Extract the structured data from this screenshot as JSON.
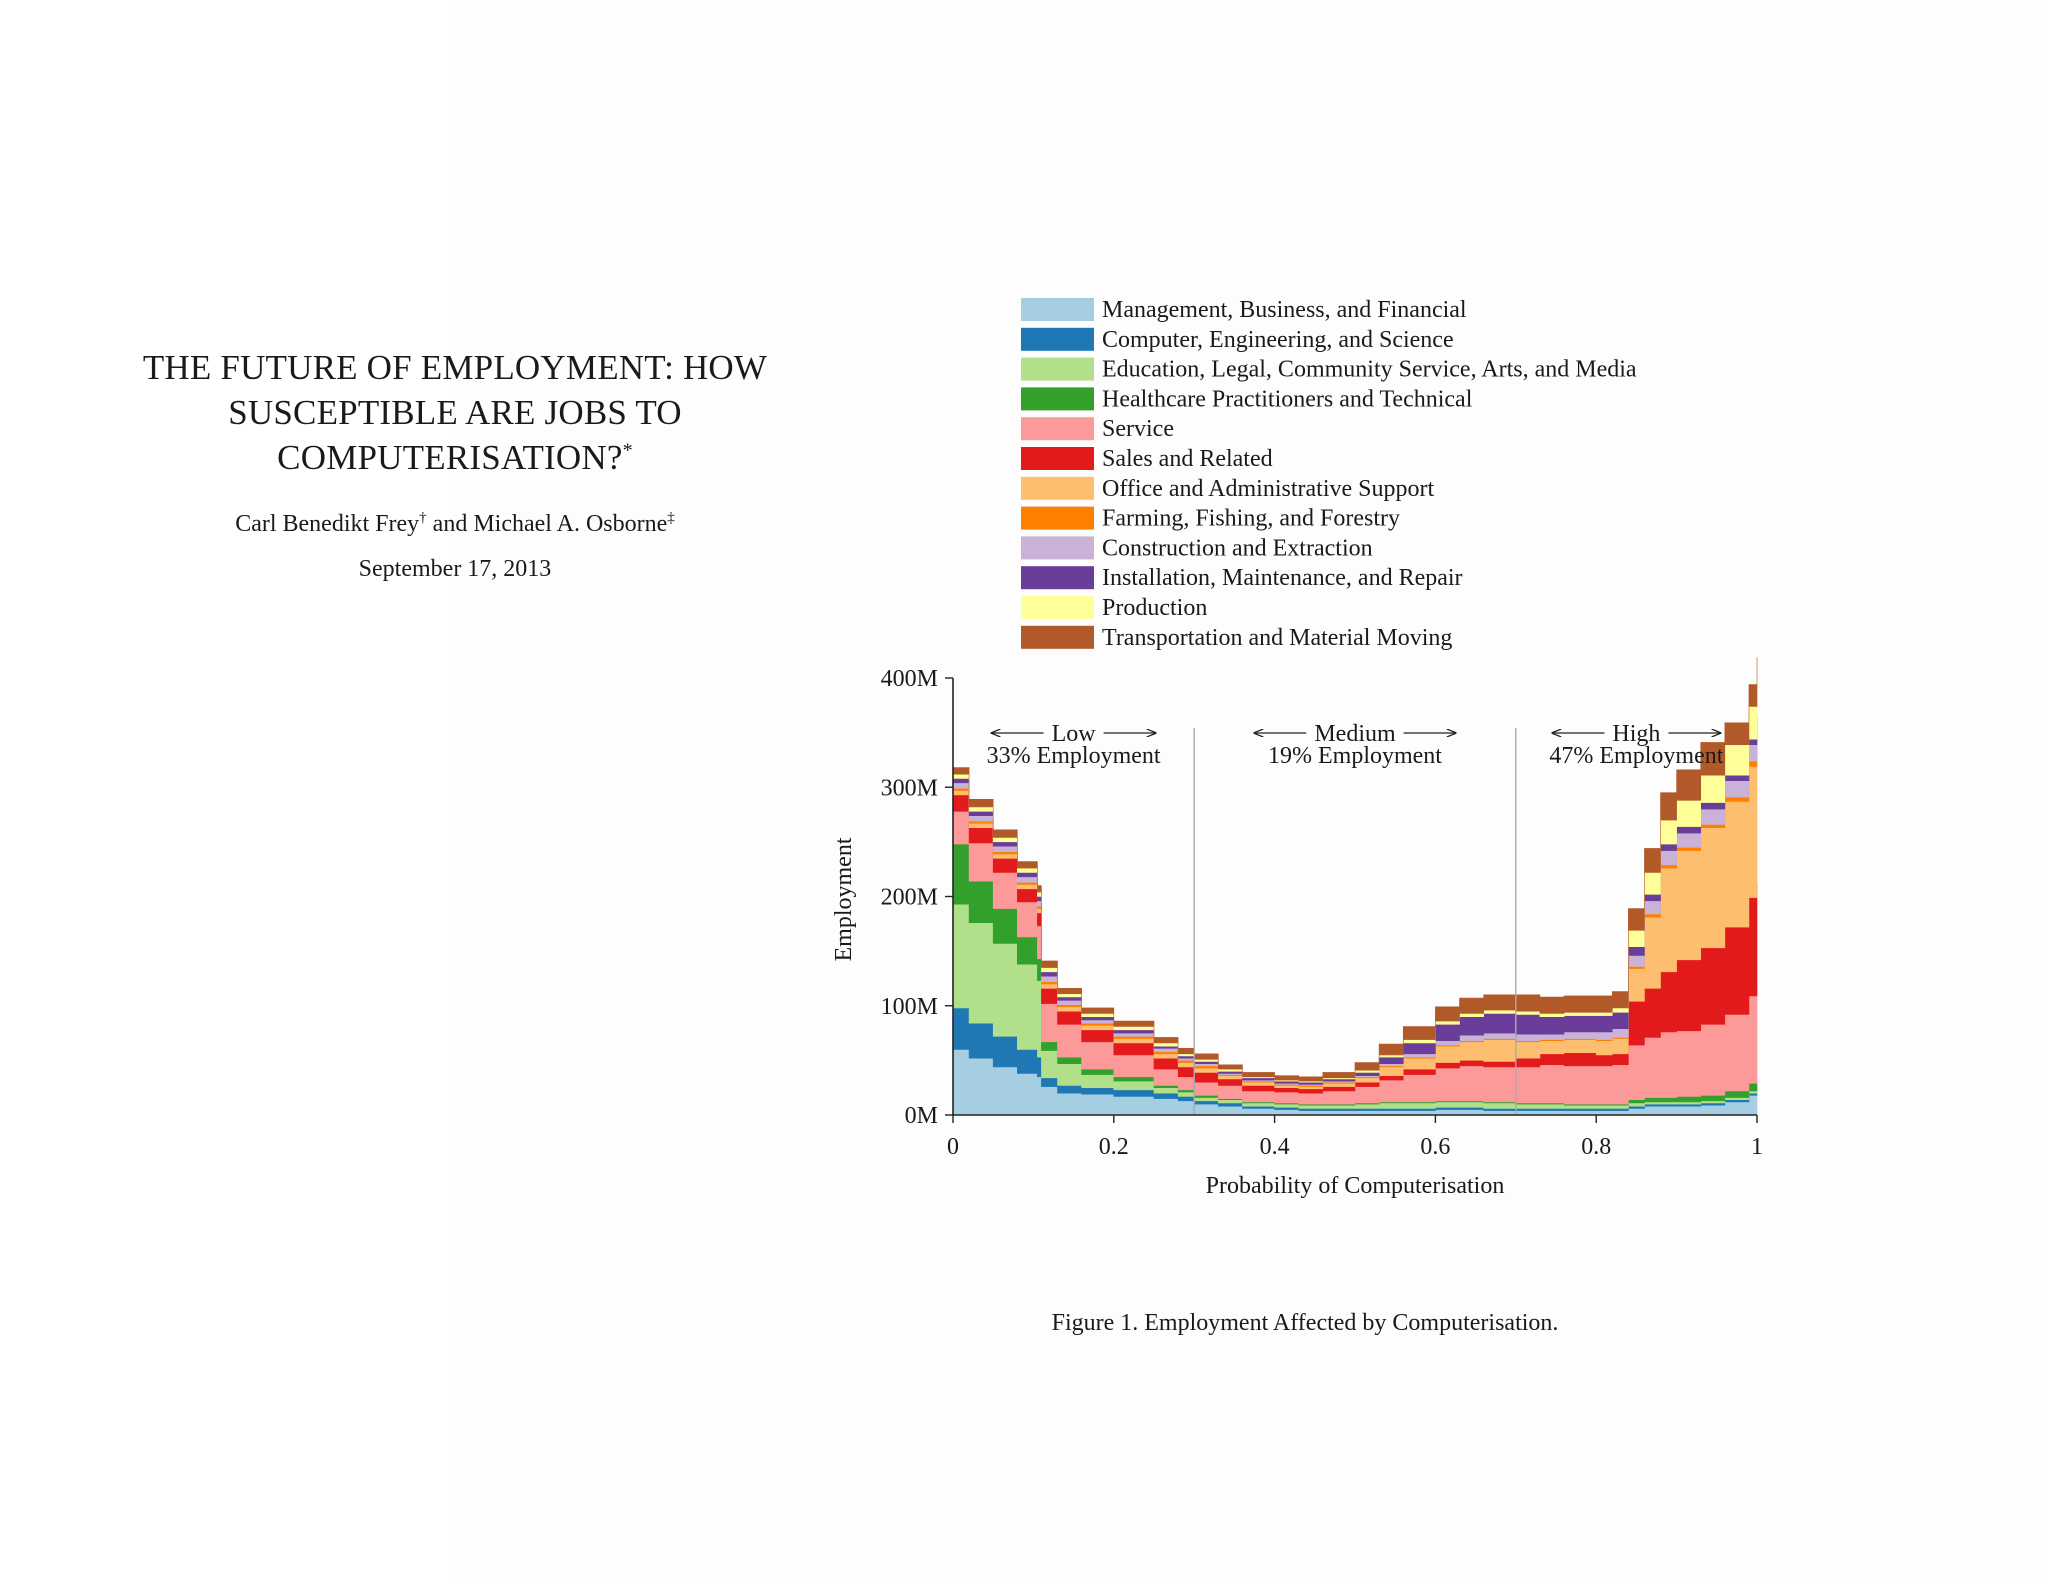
{
  "paper": {
    "title_lines": [
      "THE FUTURE OF EMPLOYMENT: HOW",
      "SUSCEPTIBLE ARE JOBS TO",
      "COMPUTERISATION?"
    ],
    "title_mark": "*",
    "author1": "Carl Benedikt Frey",
    "author1_mark": "†",
    "author_joiner": "and",
    "author2": "Michael A. Osborne",
    "author2_mark": "‡",
    "date": "September 17, 2013"
  },
  "caption": "Figure 1. Employment Affected by Computerisation.",
  "chart_data": {
    "type": "area",
    "stacked": true,
    "xlabel": "Probability of Computerisation",
    "ylabel": "Employment",
    "xlim": [
      0,
      1
    ],
    "ylim": [
      0,
      400
    ],
    "x_ticks": [
      0,
      0.2,
      0.4,
      0.6,
      0.8,
      1
    ],
    "x_tick_labels": [
      "0",
      "0.2",
      "0.4",
      "0.6",
      "0.8",
      "1"
    ],
    "y_ticks": [
      0,
      100,
      200,
      300,
      400
    ],
    "y_tick_labels": [
      "0M",
      "100M",
      "200M",
      "300M",
      "400M"
    ],
    "legend_placement": "top",
    "dividers": [
      0.3,
      0.7
    ],
    "regions": [
      {
        "label": "Low",
        "sublabel": "33% Employment",
        "center": 0.15
      },
      {
        "label": "Medium",
        "sublabel": "19% Employment",
        "center": 0.5
      },
      {
        "label": "High",
        "sublabel": "47% Employment",
        "center": 0.85
      }
    ],
    "x": [
      0,
      0.02,
      0.05,
      0.08,
      0.105,
      0.11,
      0.13,
      0.16,
      0.2,
      0.25,
      0.28,
      0.3,
      0.33,
      0.36,
      0.4,
      0.43,
      0.46,
      0.5,
      0.53,
      0.56,
      0.6,
      0.63,
      0.66,
      0.7,
      0.73,
      0.76,
      0.8,
      0.82,
      0.83,
      0.84,
      0.86,
      0.88,
      0.9,
      0.93,
      0.96,
      0.99,
      1
    ],
    "series": [
      {
        "name": "Management, Business, and Financial",
        "color": "#a6cee3",
        "values": [
          60,
          52,
          44,
          38,
          35,
          26,
          20,
          19,
          17,
          15,
          13,
          10,
          8,
          6,
          5,
          4,
          4,
          4,
          4,
          4,
          5,
          5,
          4,
          4,
          4,
          4,
          4,
          4,
          4,
          6,
          8,
          8,
          8,
          9,
          12,
          18,
          20
        ]
      },
      {
        "name": "Computer, Engineering, and Science",
        "color": "#1f78b4",
        "values": [
          38,
          32,
          28,
          22,
          18,
          8,
          7,
          6,
          6,
          5,
          4,
          3,
          3,
          2,
          2,
          2,
          2,
          2,
          2,
          2,
          2,
          2,
          2,
          2,
          2,
          2,
          2,
          2,
          2,
          2,
          2,
          2,
          2,
          2,
          2,
          2,
          2
        ]
      },
      {
        "name": "Education, Legal, Community Service, Arts, and Media",
        "color": "#b2df8a",
        "values": [
          95,
          92,
          85,
          78,
          70,
          25,
          20,
          12,
          8,
          5,
          4,
          3,
          3,
          3,
          3,
          3,
          3,
          4,
          5,
          5,
          5,
          5,
          5,
          4,
          4,
          3,
          3,
          3,
          3,
          3,
          2,
          2,
          2,
          2,
          2,
          2,
          2
        ]
      },
      {
        "name": "Healthcare Practitioners and Technical",
        "color": "#33a02c",
        "values": [
          55,
          38,
          32,
          25,
          20,
          8,
          6,
          5,
          4,
          2,
          2,
          2,
          1,
          1,
          1,
          1,
          1,
          1,
          1,
          1,
          1,
          1,
          1,
          1,
          1,
          1,
          1,
          1,
          1,
          3,
          4,
          4,
          5,
          5,
          6,
          7,
          7
        ]
      },
      {
        "name": "Service",
        "color": "#fb9a99",
        "values": [
          30,
          35,
          33,
          32,
          30,
          35,
          30,
          25,
          20,
          15,
          12,
          12,
          12,
          10,
          10,
          10,
          12,
          15,
          20,
          25,
          30,
          32,
          32,
          33,
          35,
          35,
          35,
          36,
          36,
          50,
          55,
          60,
          60,
          65,
          70,
          80,
          90
        ]
      },
      {
        "name": "Sales and Related",
        "color": "#e31a1c",
        "values": [
          15,
          14,
          13,
          12,
          12,
          14,
          12,
          11,
          11,
          10,
          9,
          9,
          6,
          5,
          4,
          4,
          4,
          4,
          4,
          5,
          5,
          5,
          5,
          8,
          10,
          12,
          10,
          10,
          10,
          40,
          45,
          55,
          65,
          70,
          80,
          90,
          92
        ]
      },
      {
        "name": "Office and Administrative Support",
        "color": "#fdbf6f",
        "values": [
          4,
          4,
          4,
          4,
          4,
          4,
          4,
          4,
          4,
          4,
          4,
          4,
          3,
          3,
          2,
          2,
          3,
          4,
          8,
          10,
          15,
          17,
          20,
          15,
          12,
          12,
          13,
          14,
          14,
          30,
          65,
          95,
          100,
          110,
          115,
          120,
          125
        ]
      },
      {
        "name": "Farming, Fishing, and Forestry",
        "color": "#ff7f00",
        "values": [
          2,
          2,
          2,
          2,
          2,
          2,
          2,
          2,
          2,
          2,
          2,
          2,
          1,
          1,
          1,
          1,
          1,
          1,
          1,
          1,
          1,
          1,
          1,
          1,
          1,
          1,
          1,
          1,
          1,
          2,
          3,
          3,
          3,
          3,
          4,
          5,
          5
        ]
      },
      {
        "name": "Construction and Extraction",
        "color": "#cab2d6",
        "values": [
          5,
          5,
          5,
          5,
          5,
          5,
          4,
          3,
          3,
          3,
          2,
          2,
          1,
          1,
          1,
          1,
          1,
          1,
          2,
          3,
          4,
          5,
          5,
          6,
          5,
          6,
          7,
          8,
          8,
          10,
          12,
          13,
          13,
          14,
          15,
          15,
          16
        ]
      },
      {
        "name": "Installation, Maintenance, and Repair",
        "color": "#6a3d9a",
        "values": [
          4,
          4,
          4,
          4,
          4,
          4,
          3,
          3,
          3,
          2,
          2,
          2,
          2,
          2,
          2,
          2,
          2,
          3,
          6,
          10,
          15,
          17,
          18,
          18,
          16,
          15,
          15,
          15,
          15,
          8,
          6,
          6,
          6,
          6,
          5,
          5,
          5
        ]
      },
      {
        "name": "Production",
        "color": "#ffff99",
        "values": [
          4,
          4,
          4,
          4,
          4,
          4,
          3,
          3,
          3,
          3,
          2,
          2,
          2,
          1,
          1,
          1,
          1,
          2,
          2,
          3,
          3,
          3,
          3,
          3,
          3,
          3,
          3,
          4,
          4,
          15,
          20,
          22,
          24,
          25,
          28,
          30,
          35
        ]
      },
      {
        "name": "Transportation and Material Moving",
        "color": "#b15928",
        "values": [
          6,
          7,
          7,
          6,
          6,
          6,
          5,
          5,
          5,
          5,
          5,
          5,
          4,
          4,
          4,
          4,
          5,
          7,
          10,
          12,
          13,
          14,
          14,
          15,
          15,
          15,
          15,
          15,
          15,
          20,
          22,
          25,
          28,
          30,
          20,
          20,
          20
        ]
      }
    ]
  }
}
